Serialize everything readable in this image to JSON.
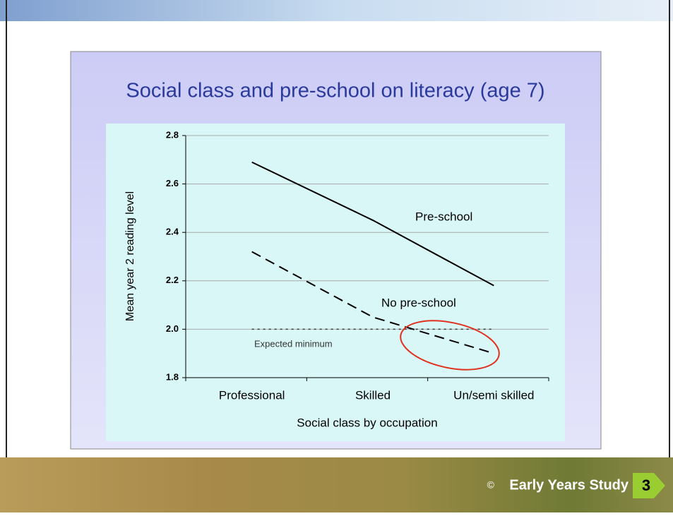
{
  "chart_data": {
    "type": "line",
    "title": "Social class and pre-school on literacy (age 7)",
    "x_label": "Social class by occupation",
    "y_label": "Mean year 2 reading level",
    "categories": [
      "Professional",
      "Skilled",
      "Un/semi skilled"
    ],
    "series": [
      {
        "name": "Pre-school",
        "color": "#000000",
        "dash": "solid",
        "values": [
          2.69,
          2.45,
          2.18
        ]
      },
      {
        "name": "No pre-school",
        "color": "#000000",
        "dash": "dashed",
        "values": [
          2.32,
          2.05,
          1.9
        ]
      },
      {
        "name": "Expected minimum",
        "color": "#333333",
        "dash": "dotted",
        "values": [
          2,
          2,
          2
        ]
      }
    ],
    "ylim": [
      1.8,
      2.8
    ],
    "yticks": [
      1.8,
      {
        "value": 2,
        "label": "2.0"
      },
      2.2,
      2.4,
      2.6,
      2.8
    ],
    "grid": true
  },
  "footer": {
    "copyright": "©",
    "text": "Early Years Study",
    "page": "3"
  }
}
